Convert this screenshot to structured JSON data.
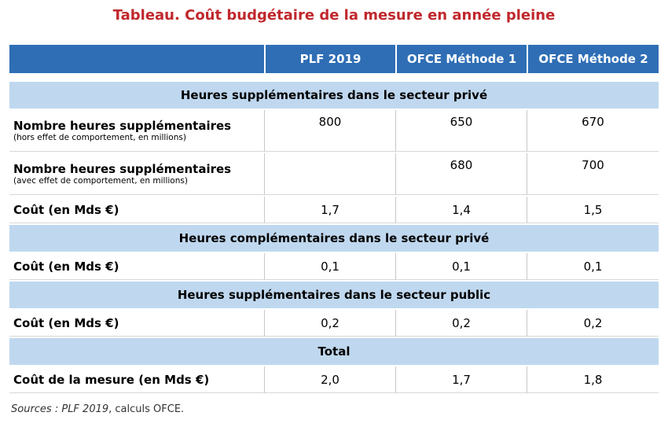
{
  "header": {
    "title": "Tableau. Coût budgétaire de la mesure en année pleine"
  },
  "table": {
    "columns": [
      "PLF 2019",
      "OFCE Méthode 1",
      "OFCE Méthode 2"
    ],
    "sections": [
      {
        "title": "Heures supplémentaires dans le secteur privé",
        "rows": [
          {
            "label": "Nombre heures supplémentaires",
            "sublabel": "(hors effet de comportement, en millions)",
            "cells": [
              "800",
              "650",
              "670"
            ]
          },
          {
            "label": "Nombre heures supplémentaires",
            "sublabel": "(avec effet de comportement, en millions)",
            "cells": [
              null,
              "680",
              "700"
            ]
          },
          {
            "label": "Coût (en Mds €)",
            "cells": [
              "1,7",
              "1,4",
              "1,5"
            ]
          }
        ]
      },
      {
        "title": "Heures complémentaires dans le secteur privé",
        "rows": [
          {
            "label": "Coût (en Mds €)",
            "cells": [
              "0,1",
              "0,1",
              "0,1"
            ]
          }
        ]
      },
      {
        "title": "Heures supplémentaires dans le secteur public",
        "rows": [
          {
            "label": "Coût (en Mds €)",
            "cells": [
              "0,2",
              "0,2",
              "0,2"
            ]
          }
        ]
      },
      {
        "title": "Total",
        "rows": [
          {
            "label": "Coût de la mesure (en Mds €)",
            "cells": [
              "2,0",
              "1,7",
              "1,8"
            ]
          }
        ]
      }
    ]
  },
  "footer": {
    "source_italic": "Sources : PLF 2019",
    "source_rest": ", calculs OFCE."
  }
}
